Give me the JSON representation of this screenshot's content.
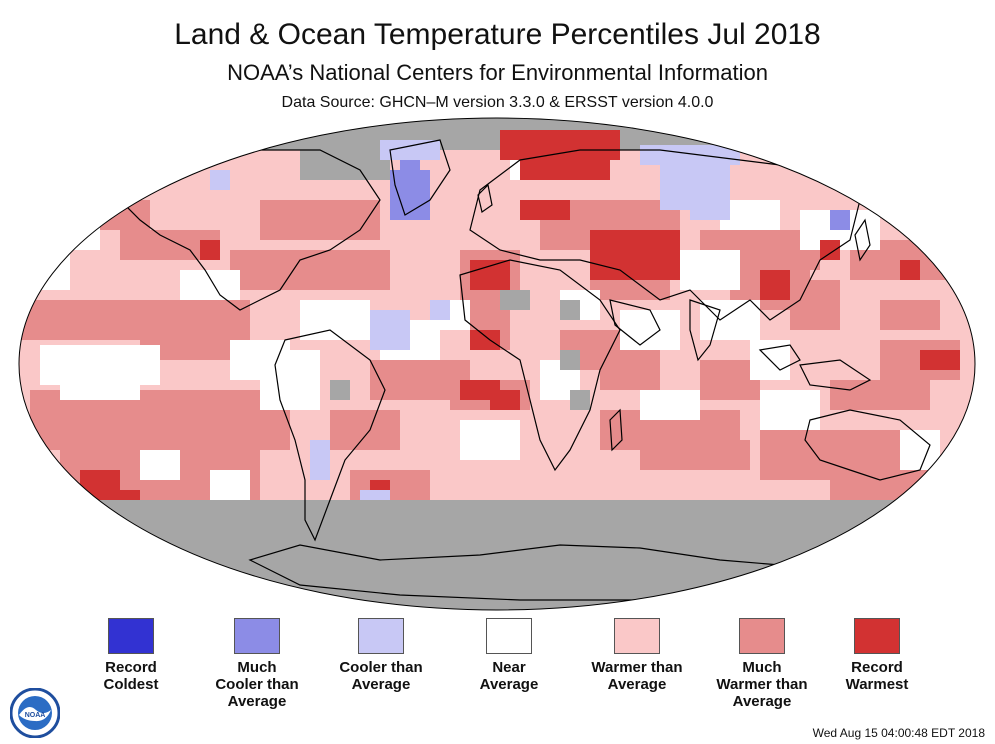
{
  "header": {
    "title": "Land & Ocean Temperature Percentiles Jul 2018",
    "subtitle": "NOAA’s National Centers for Environmental Information",
    "source": "Data Source: GHCN–M version 3.3.0 & ERSST version 4.0.0"
  },
  "map": {
    "projection": "Robinson",
    "colors": {
      "no_data": "#a6a6a6",
      "record_coldest": "#3232d2",
      "much_cooler": "#8c8ce6",
      "cooler": "#c8c8f5",
      "near": "#ffffff",
      "warmer": "#fac8c8",
      "much_warmer": "#e68c8c",
      "record_warmest": "#d23232",
      "coast": "#000000"
    }
  },
  "legend": {
    "items": [
      {
        "label": "Record\nColdest",
        "color": "#3232d2"
      },
      {
        "label": "Much\nCooler than\nAverage",
        "color": "#8c8ce6"
      },
      {
        "label": "Cooler than\nAverage",
        "color": "#c8c8f5"
      },
      {
        "label": "Near\nAverage",
        "color": "#ffffff"
      },
      {
        "label": "Warmer than\nAverage",
        "color": "#fac8c8"
      },
      {
        "label": "Much\nWarmer than\nAverage",
        "color": "#e68c8c"
      },
      {
        "label": "Record\nWarmest",
        "color": "#d23232"
      }
    ]
  },
  "footer": {
    "timestamp": "Wed Aug 15 04:00:48 EDT 2018",
    "logo_text": "NOAA",
    "logo_colors": {
      "outer": "#ffffff",
      "ring": "#1f4e9e",
      "sky": "#2b6cc4",
      "bird": "#ffffff"
    }
  }
}
